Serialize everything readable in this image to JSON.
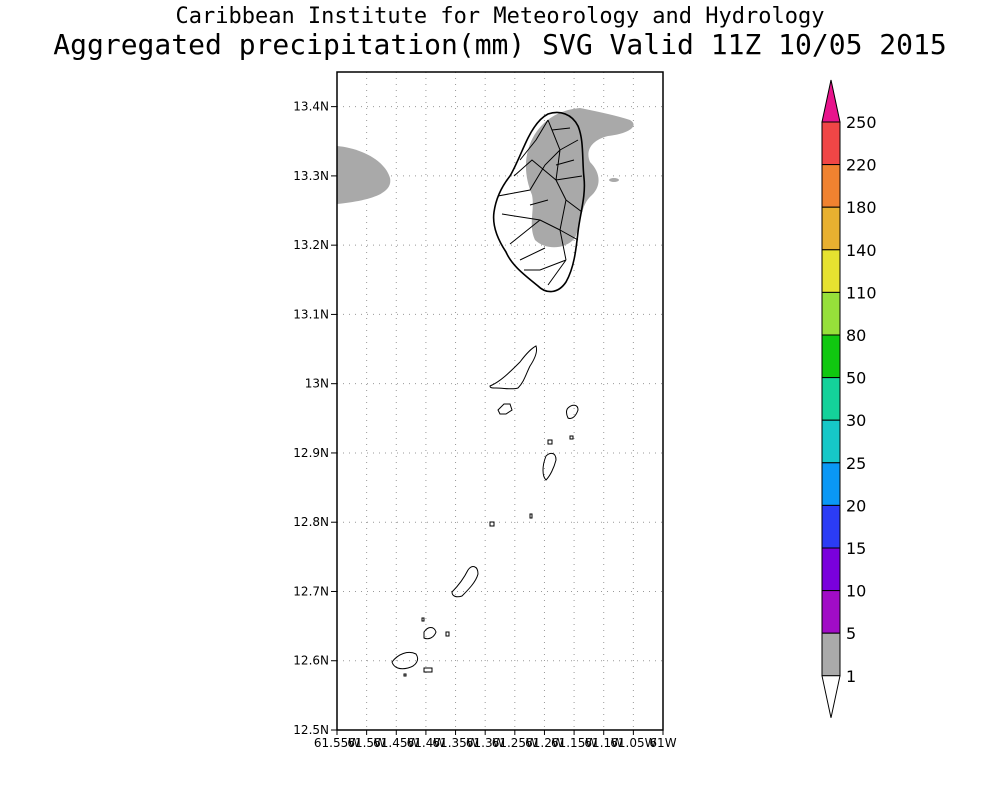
{
  "header": {
    "title": "Caribbean Institute for Meteorology and Hydrology",
    "subtitle": "Aggregated precipitation(mm) SVG Valid 11Z 10/05 2015"
  },
  "map": {
    "region": "Saint Vincent and the Grenadines",
    "lon_range": [
      -61.55,
      -61.0
    ],
    "lat_range": [
      12.5,
      13.45
    ],
    "lat_ticks": [
      {
        "value": 13.4,
        "label": "13.4N"
      },
      {
        "value": 13.3,
        "label": "13.3N"
      },
      {
        "value": 13.2,
        "label": "13.2N"
      },
      {
        "value": 13.1,
        "label": "13.1N"
      },
      {
        "value": 13.0,
        "label": "13N"
      },
      {
        "value": 12.9,
        "label": "12.9N"
      },
      {
        "value": 12.8,
        "label": "12.8N"
      },
      {
        "value": 12.7,
        "label": "12.7N"
      },
      {
        "value": 12.6,
        "label": "12.6N"
      },
      {
        "value": 12.5,
        "label": "12.5N"
      }
    ],
    "lon_ticks": [
      {
        "value": -61.55,
        "label": "61.55W"
      },
      {
        "value": -61.5,
        "label": "61.5W"
      },
      {
        "value": -61.45,
        "label": "61.45W"
      },
      {
        "value": -61.4,
        "label": "61.4W"
      },
      {
        "value": -61.35,
        "label": "61.35W"
      },
      {
        "value": -61.3,
        "label": "61.3W"
      },
      {
        "value": -61.25,
        "label": "61.25W"
      },
      {
        "value": -61.2,
        "label": "61.2W"
      },
      {
        "value": -61.15,
        "label": "61.15W"
      },
      {
        "value": -61.1,
        "label": "61.1W"
      },
      {
        "value": -61.05,
        "label": "61.05W"
      },
      {
        "value": -61.0,
        "label": "61W"
      }
    ],
    "grid": true,
    "precip_shading_color": "#a9a9a9",
    "coast_color": "#000000"
  },
  "colorbar": {
    "levels": [
      "1",
      "5",
      "10",
      "15",
      "20",
      "25",
      "30",
      "50",
      "80",
      "110",
      "140",
      "180",
      "220",
      "250"
    ],
    "colors": [
      "#aaaaaa",
      "#a10cc6",
      "#7a00dd",
      "#2b3cf5",
      "#0a98f5",
      "#16c8c8",
      "#14d29a",
      "#10c810",
      "#96e03a",
      "#e6e230",
      "#e8b030",
      "#f08230",
      "#f04646",
      "#e8148c"
    ],
    "under_color": "#ffffff",
    "over_color": "#e8148c"
  }
}
